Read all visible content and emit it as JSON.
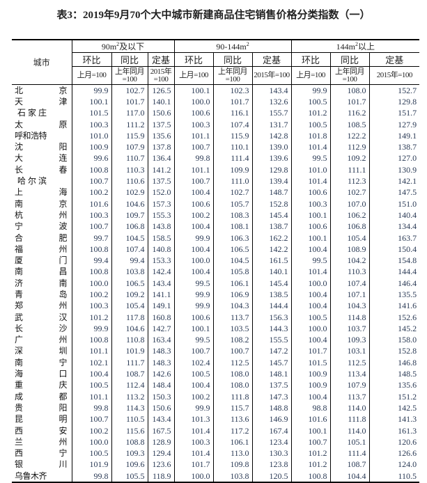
{
  "title": "表3：2019年9月70个大中城市新建商品住宅销售价格分类指数（一）",
  "header": {
    "city": "城市",
    "groups": [
      {
        "pre": "90m",
        "sup": "2",
        "post": "及以下"
      },
      {
        "pre": "90-144m",
        "sup": "2",
        "post": ""
      },
      {
        "pre": "144m",
        "sup": "2",
        "post": "以上"
      }
    ],
    "sub": [
      "环比",
      "同比",
      "定基"
    ],
    "units": [
      "上月=100",
      "上年同月=100",
      "2015年=100"
    ]
  },
  "rows": [
    [
      "北京",
      99.9,
      102.7,
      126.5,
      100.1,
      102.3,
      143.4,
      99.9,
      108.0,
      152.7
    ],
    [
      "天津",
      100.1,
      101.7,
      140.1,
      100.0,
      101.7,
      132.6,
      100.5,
      101.7,
      129.8
    ],
    [
      "石家庄",
      101.5,
      117.0,
      150.6,
      100.6,
      116.1,
      155.7,
      101.2,
      116.2,
      151.7
    ],
    [
      "太原",
      100.3,
      111.2,
      137.5,
      100.3,
      107.4,
      131.7,
      100.5,
      108.5,
      127.9
    ],
    [
      "呼和浩特",
      101.0,
      115.9,
      135.6,
      101.1,
      115.9,
      142.8,
      101.8,
      122.2,
      149.1
    ],
    [
      "沈阳",
      100.9,
      107.9,
      137.8,
      100.7,
      110.1,
      139.0,
      101.4,
      112.9,
      138.7
    ],
    [
      "大连",
      99.6,
      110.7,
      136.4,
      99.8,
      111.4,
      139.6,
      99.5,
      109.2,
      127.0
    ],
    [
      "长春",
      100.8,
      110.3,
      141.2,
      101.1,
      109.9,
      129.8,
      101.0,
      111.1,
      130.9
    ],
    [
      "哈尔滨",
      100.7,
      110.6,
      137.5,
      100.7,
      111.0,
      139.4,
      101.4,
      112.3,
      142.1
    ],
    [
      "上海",
      100.2,
      102.9,
      152.0,
      100.4,
      102.7,
      148.7,
      100.6,
      102.7,
      147.5
    ],
    [
      "南京",
      101.6,
      104.6,
      157.3,
      100.6,
      105.7,
      152.8,
      100.3,
      107.0,
      151.0
    ],
    [
      "杭州",
      100.3,
      109.7,
      155.3,
      100.2,
      108.3,
      145.4,
      100.1,
      106.2,
      140.4
    ],
    [
      "宁波",
      100.7,
      106.8,
      143.8,
      100.4,
      108.1,
      138.7,
      100.6,
      106.8,
      134.4
    ],
    [
      "合肥",
      99.7,
      104.5,
      158.5,
      99.9,
      106.3,
      162.2,
      100.1,
      105.4,
      163.7
    ],
    [
      "福州",
      100.8,
      107.4,
      140.8,
      100.4,
      106.5,
      142.2,
      100.4,
      108.9,
      150.4
    ],
    [
      "厦门",
      99.4,
      99.4,
      153.3,
      100.0,
      104.5,
      161.5,
      99.5,
      104.2,
      154.8
    ],
    [
      "南昌",
      100.8,
      103.8,
      142.4,
      100.4,
      105.8,
      140.1,
      101.4,
      110.3,
      144.4
    ],
    [
      "济南",
      100.0,
      106.5,
      143.4,
      99.5,
      106.1,
      145.4,
      100.0,
      107.4,
      146.4
    ],
    [
      "青岛",
      100.2,
      109.2,
      141.1,
      99.9,
      106.9,
      138.5,
      100.4,
      107.1,
      135.5
    ],
    [
      "郑州",
      100.3,
      105.4,
      149.1,
      99.9,
      104.3,
      144.4,
      100.4,
      104.3,
      141.6
    ],
    [
      "武汉",
      101.2,
      117.8,
      160.8,
      100.6,
      113.7,
      156.3,
      100.5,
      114.8,
      152.6
    ],
    [
      "长沙",
      99.9,
      104.6,
      142.7,
      100.1,
      103.5,
      144.3,
      100.0,
      103.7,
      145.2
    ],
    [
      "广州",
      100.8,
      110.8,
      163.4,
      99.5,
      108.2,
      155.5,
      100.4,
      109.3,
      158.0
    ],
    [
      "深圳",
      101.1,
      101.9,
      148.3,
      100.7,
      100.7,
      147.2,
      101.7,
      103.1,
      152.8
    ],
    [
      "南宁",
      102.1,
      111.7,
      148.3,
      102.4,
      112.5,
      145.7,
      101.5,
      112.5,
      146.8
    ],
    [
      "海口",
      100.4,
      108.7,
      142.6,
      100.5,
      108.0,
      148.1,
      100.9,
      113.4,
      148.5
    ],
    [
      "重庆",
      100.5,
      112.4,
      148.4,
      100.4,
      108.0,
      137.5,
      100.9,
      107.9,
      135.6
    ],
    [
      "成都",
      101.1,
      113.2,
      150.3,
      100.2,
      111.8,
      147.3,
      100.4,
      113.7,
      151.2
    ],
    [
      "贵阳",
      99.8,
      114.3,
      150.6,
      99.9,
      115.7,
      148.8,
      98.8,
      114.0,
      142.5
    ],
    [
      "昆明",
      100.7,
      110.5,
      143.4,
      101.3,
      113.6,
      146.9,
      101.6,
      111.8,
      141.3
    ],
    [
      "西安",
      100.2,
      115.6,
      167.5,
      101.4,
      117.2,
      167.4,
      100.1,
      114.0,
      161.3
    ],
    [
      "兰州",
      100.0,
      108.8,
      128.9,
      100.3,
      106.1,
      123.4,
      100.7,
      105.1,
      120.6
    ],
    [
      "西宁",
      100.5,
      109.3,
      129.4,
      101.4,
      113.0,
      130.3,
      101.2,
      111.4,
      126.6
    ],
    [
      "银川",
      101.9,
      109.6,
      123.6,
      101.7,
      109.8,
      123.8,
      101.2,
      108.7,
      124.0
    ],
    [
      "乌鲁木齐",
      99.8,
      105.5,
      118.9,
      100.0,
      103.8,
      120.5,
      100.8,
      104.4,
      110.5
    ]
  ]
}
